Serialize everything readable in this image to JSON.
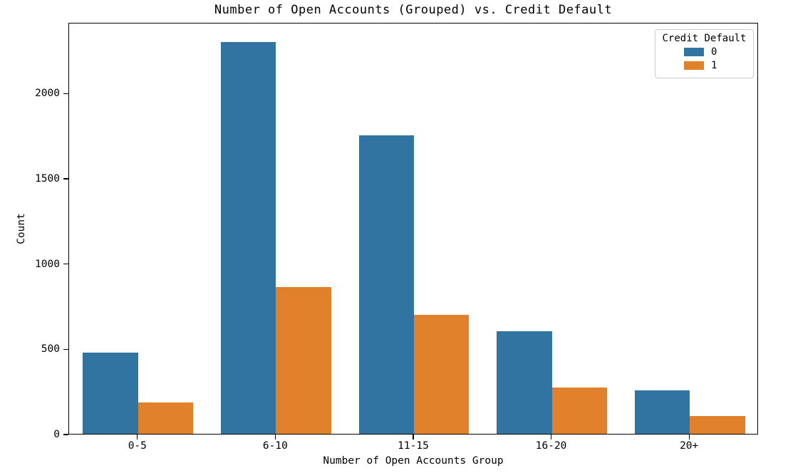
{
  "title": "Number of Open Accounts (Grouped) vs. Credit Default",
  "chart_data": {
    "type": "bar",
    "title": "Number of Open Accounts (Grouped) vs. Credit Default",
    "xlabel": "Number of Open Accounts Group",
    "ylabel": "Count",
    "categories": [
      "0-5",
      "6-10",
      "11-15",
      "16-20",
      "20+"
    ],
    "series": [
      {
        "name": "0",
        "color": "#3274a1",
        "values": [
          475,
          2300,
          1750,
          600,
          255
        ]
      },
      {
        "name": "1",
        "color": "#e1812c",
        "values": [
          185,
          860,
          700,
          270,
          105
        ]
      }
    ],
    "yticks": [
      0,
      500,
      1000,
      1500,
      2000
    ],
    "ylim": [
      0,
      2415
    ],
    "grid": false,
    "legend": {
      "title": "Credit Default",
      "position": "upper right"
    }
  },
  "colors": {
    "bar_blue": "#3274a1",
    "bar_orange": "#e1812c",
    "axis": "#000000",
    "background": "#ffffff",
    "legend_border": "#cccccc"
  }
}
